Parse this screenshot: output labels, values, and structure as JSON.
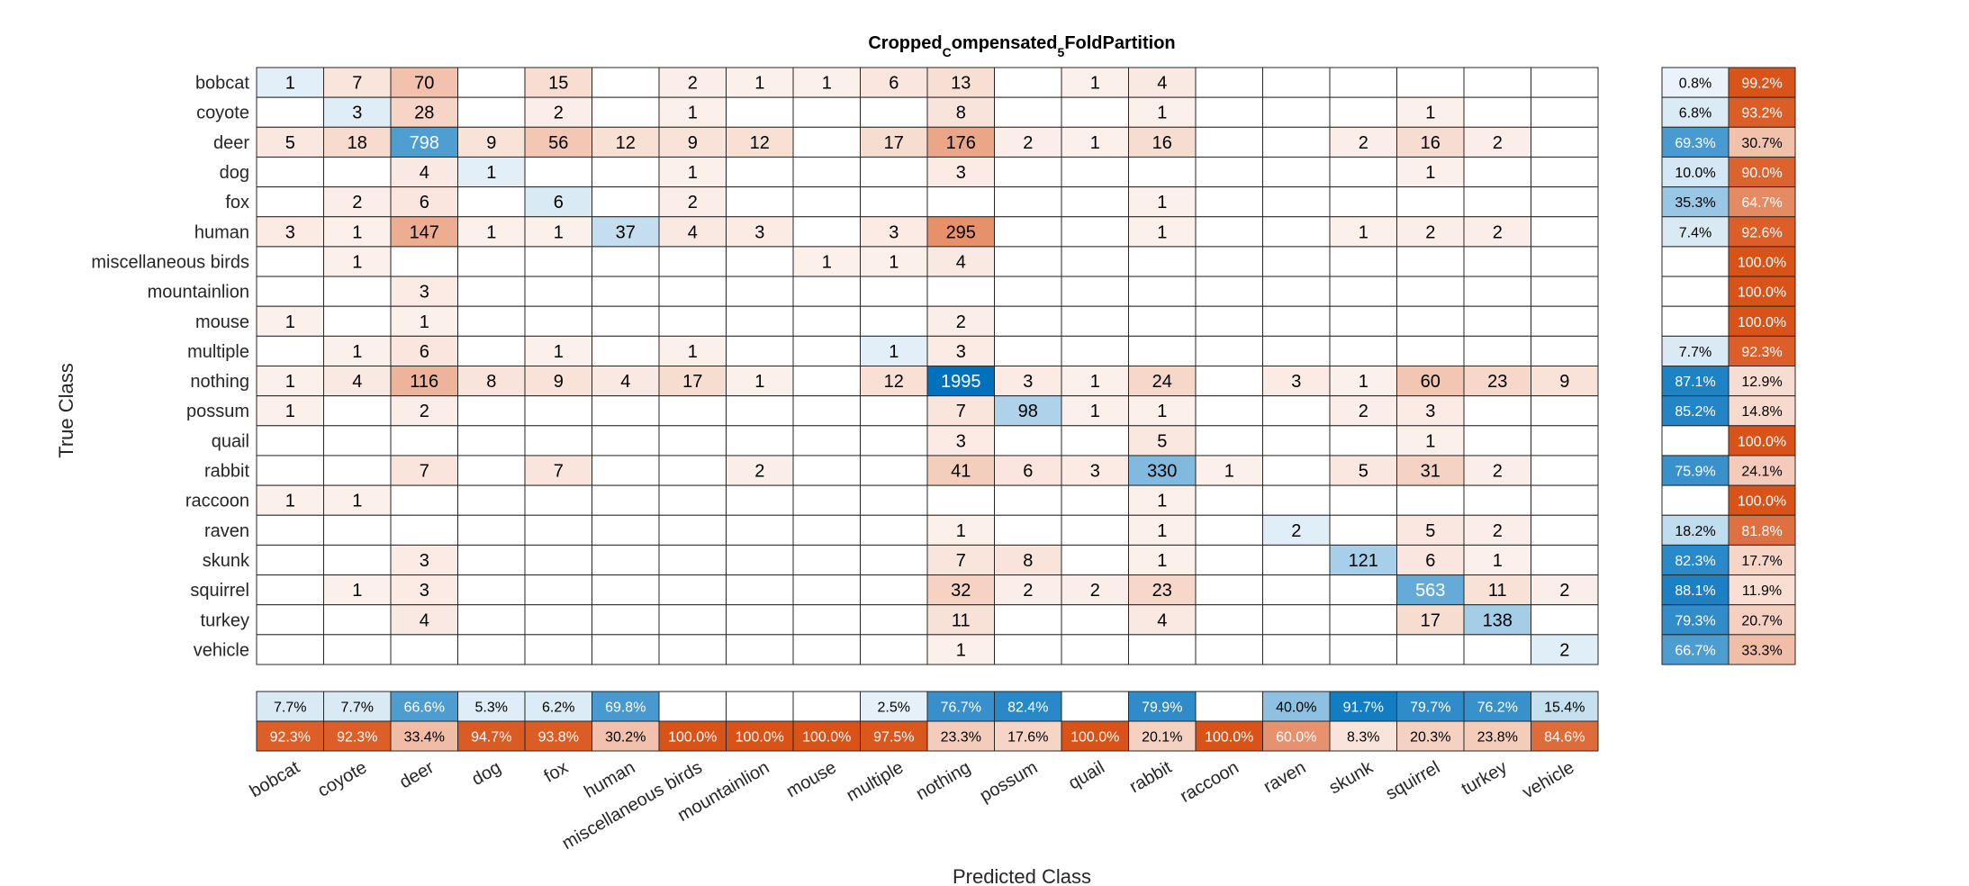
{
  "chart_data": {
    "type": "heatmap",
    "title_parts": [
      "Cropped",
      "C",
      "ompensated",
      "5",
      "FoldPartition"
    ],
    "xlabel": "Predicted Class",
    "ylabel": "True Class",
    "classes": [
      "bobcat",
      "coyote",
      "deer",
      "dog",
      "fox",
      "human",
      "miscellaneous birds",
      "mountainlion",
      "mouse",
      "multiple",
      "nothing",
      "possum",
      "quail",
      "rabbit",
      "raccoon",
      "raven",
      "skunk",
      "squirrel",
      "turkey",
      "vehicle"
    ],
    "matrix": [
      [
        1,
        7,
        70,
        null,
        15,
        null,
        2,
        1,
        1,
        6,
        13,
        null,
        1,
        4,
        null,
        null,
        null,
        null,
        null,
        null
      ],
      [
        null,
        3,
        28,
        null,
        2,
        null,
        1,
        null,
        null,
        null,
        8,
        null,
        null,
        1,
        null,
        null,
        null,
        1,
        null,
        null
      ],
      [
        5,
        18,
        798,
        9,
        56,
        12,
        9,
        12,
        null,
        17,
        176,
        2,
        1,
        16,
        null,
        null,
        2,
        16,
        2,
        null
      ],
      [
        null,
        null,
        4,
        1,
        null,
        null,
        1,
        null,
        null,
        null,
        3,
        null,
        null,
        null,
        null,
        null,
        null,
        1,
        null,
        null
      ],
      [
        null,
        2,
        6,
        null,
        6,
        null,
        2,
        null,
        null,
        null,
        null,
        null,
        null,
        1,
        null,
        null,
        null,
        null,
        null,
        null
      ],
      [
        3,
        1,
        147,
        1,
        1,
        37,
        4,
        3,
        null,
        3,
        295,
        null,
        null,
        1,
        null,
        null,
        1,
        2,
        2,
        null
      ],
      [
        null,
        1,
        null,
        null,
        null,
        null,
        null,
        null,
        1,
        1,
        4,
        null,
        null,
        null,
        null,
        null,
        null,
        null,
        null,
        null
      ],
      [
        null,
        null,
        3,
        null,
        null,
        null,
        null,
        null,
        null,
        null,
        null,
        null,
        null,
        null,
        null,
        null,
        null,
        null,
        null,
        null
      ],
      [
        1,
        null,
        1,
        null,
        null,
        null,
        null,
        null,
        null,
        null,
        2,
        null,
        null,
        null,
        null,
        null,
        null,
        null,
        null,
        null
      ],
      [
        null,
        1,
        6,
        null,
        1,
        null,
        1,
        null,
        null,
        1,
        3,
        null,
        null,
        null,
        null,
        null,
        null,
        null,
        null,
        null
      ],
      [
        1,
        4,
        116,
        8,
        9,
        4,
        17,
        1,
        null,
        12,
        1995,
        3,
        1,
        24,
        null,
        3,
        1,
        60,
        23,
        9
      ],
      [
        1,
        null,
        2,
        null,
        null,
        null,
        null,
        null,
        null,
        null,
        7,
        98,
        1,
        1,
        null,
        null,
        2,
        3,
        null,
        null
      ],
      [
        null,
        null,
        null,
        null,
        null,
        null,
        null,
        null,
        null,
        null,
        3,
        null,
        null,
        5,
        null,
        null,
        null,
        1,
        null,
        null
      ],
      [
        null,
        null,
        7,
        null,
        7,
        null,
        null,
        2,
        null,
        null,
        41,
        6,
        3,
        330,
        1,
        null,
        5,
        31,
        2,
        null
      ],
      [
        1,
        1,
        null,
        null,
        null,
        null,
        null,
        null,
        null,
        null,
        null,
        null,
        null,
        1,
        null,
        null,
        null,
        null,
        null,
        null
      ],
      [
        null,
        null,
        null,
        null,
        null,
        null,
        null,
        null,
        null,
        null,
        1,
        null,
        null,
        1,
        null,
        2,
        null,
        5,
        2,
        null
      ],
      [
        null,
        null,
        3,
        null,
        null,
        null,
        null,
        null,
        null,
        null,
        7,
        8,
        null,
        1,
        null,
        null,
        121,
        6,
        1,
        null
      ],
      [
        null,
        1,
        3,
        null,
        null,
        null,
        null,
        null,
        null,
        null,
        32,
        2,
        2,
        23,
        null,
        null,
        null,
        563,
        11,
        2
      ],
      [
        null,
        null,
        4,
        null,
        null,
        null,
        null,
        null,
        null,
        null,
        11,
        null,
        null,
        4,
        null,
        null,
        null,
        17,
        138,
        null
      ],
      [
        null,
        null,
        null,
        null,
        null,
        null,
        null,
        null,
        null,
        null,
        1,
        null,
        null,
        null,
        null,
        null,
        null,
        null,
        null,
        2
      ]
    ],
    "row_summary": {
      "correct": [
        "0.8%",
        "6.8%",
        "69.3%",
        "10.0%",
        "35.3%",
        "7.4%",
        "",
        "",
        "",
        "7.7%",
        "87.1%",
        "85.2%",
        "",
        "75.9%",
        "",
        "18.2%",
        "82.3%",
        "88.1%",
        "79.3%",
        "66.7%"
      ],
      "incorrect": [
        "99.2%",
        "93.2%",
        "30.7%",
        "90.0%",
        "64.7%",
        "92.6%",
        "100.0%",
        "100.0%",
        "100.0%",
        "92.3%",
        "12.9%",
        "14.8%",
        "100.0%",
        "24.1%",
        "100.0%",
        "81.8%",
        "17.7%",
        "11.9%",
        "20.7%",
        "33.3%"
      ]
    },
    "column_summary": {
      "correct": [
        "7.7%",
        "7.7%",
        "66.6%",
        "5.3%",
        "6.2%",
        "69.8%",
        "",
        "",
        "",
        "2.5%",
        "76.7%",
        "82.4%",
        "",
        "79.9%",
        "",
        "40.0%",
        "91.7%",
        "79.7%",
        "76.2%",
        "15.4%"
      ],
      "incorrect": [
        "92.3%",
        "92.3%",
        "33.4%",
        "94.7%",
        "93.8%",
        "30.2%",
        "100.0%",
        "100.0%",
        "100.0%",
        "97.5%",
        "23.3%",
        "17.6%",
        "100.0%",
        "20.1%",
        "100.0%",
        "60.0%",
        "8.3%",
        "20.3%",
        "23.8%",
        "84.6%"
      ]
    },
    "colors": {
      "correct": "#0072bd",
      "incorrect": "#d95319",
      "grid": "#262626"
    }
  }
}
